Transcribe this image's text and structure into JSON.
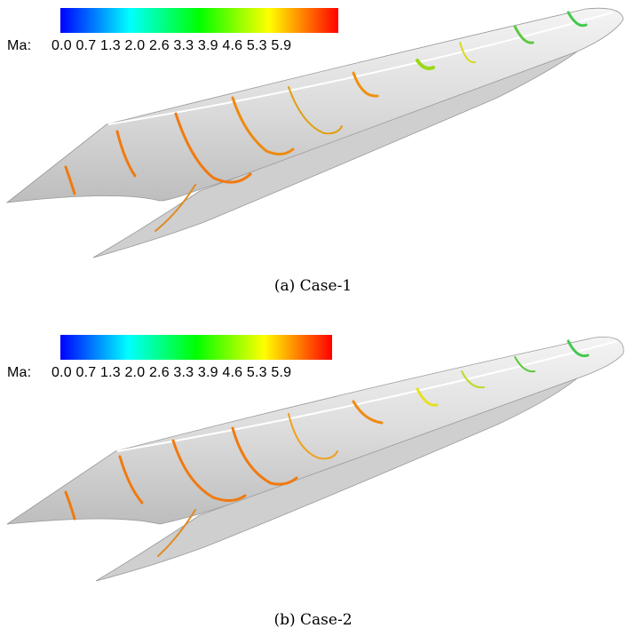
{
  "panels": [
    {
      "colorbar": {
        "prefix": "Ma:",
        "ticks": "0.0 0.7 1.3 2.0 2.6 3.3 3.9 4.6 5.3 5.9",
        "colors": [
          "#0000ff",
          "#00ffff",
          "#00ff00",
          "#ffff00",
          "#ff0000"
        ]
      },
      "caption": "(a)  Case-1"
    },
    {
      "colorbar": {
        "prefix": "Ma:",
        "ticks": "0.0 0.7 1.3 2.0 2.6 3.3 3.9 4.6 5.3 5.9",
        "colors": [
          "#0000ff",
          "#00ffff",
          "#00ff00",
          "#ffff00",
          "#ff0000"
        ]
      },
      "caption": "(b)  Case-2"
    }
  ]
}
